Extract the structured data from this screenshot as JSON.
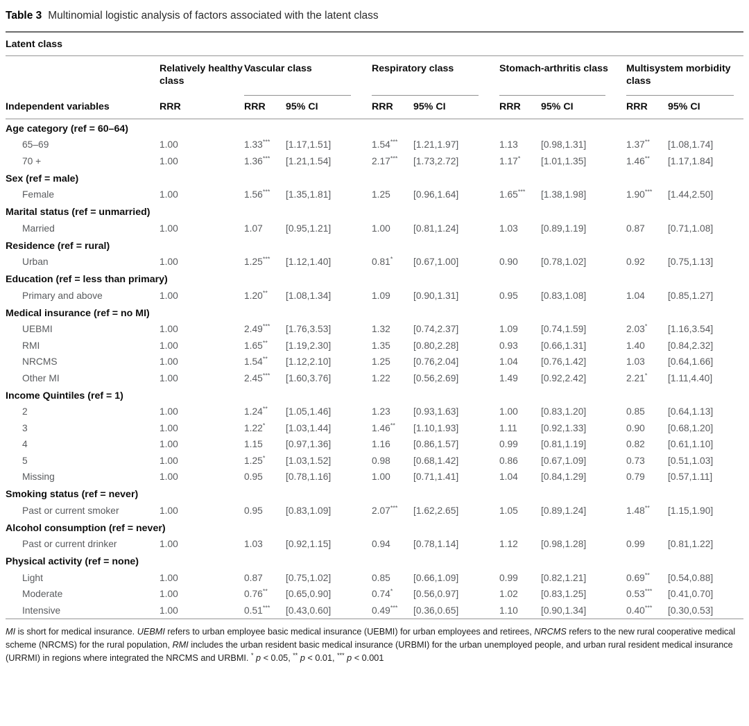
{
  "title": {
    "label": "Table 3",
    "text": "Multinomial logistic analysis of factors associated with the latent class"
  },
  "table": {
    "span_header": "Latent class",
    "row_header": "Independent variables",
    "col_groups": [
      {
        "label": "Relatively healthy class",
        "cols": [
          "RRR"
        ]
      },
      {
        "label": "Vascular class",
        "cols": [
          "RRR",
          "95% CI"
        ]
      },
      {
        "label": "Respiratory class",
        "cols": [
          "RRR",
          "95% CI"
        ]
      },
      {
        "label": "Stomach-arthritis class",
        "cols": [
          "RRR",
          "95% CI"
        ]
      },
      {
        "label": "Multisystem morbidity class",
        "cols": [
          "RRR",
          "95% CI"
        ]
      }
    ],
    "sections": [
      {
        "header": "Age category (ref = 60–64)",
        "rows": [
          {
            "label": "65–69",
            "cells": [
              "1.00",
              "1.33***",
              "[1.17,1.51]",
              "1.54***",
              "[1.21,1.97]",
              "1.13",
              "[0.98,1.31]",
              "1.37**",
              "[1.08,1.74]"
            ]
          },
          {
            "label": "70 +",
            "cells": [
              "1.00",
              "1.36***",
              "[1.21,1.54]",
              "2.17***",
              "[1.73,2.72]",
              "1.17*",
              "[1.01,1.35]",
              "1.46**",
              "[1.17,1.84]"
            ]
          }
        ]
      },
      {
        "header": "Sex (ref = male)",
        "rows": [
          {
            "label": "Female",
            "cells": [
              "1.00",
              "1.56***",
              "[1.35,1.81]",
              "1.25",
              "[0.96,1.64]",
              "1.65***",
              "[1.38,1.98]",
              "1.90***",
              "[1.44,2.50]"
            ]
          }
        ]
      },
      {
        "header": "Marital status (ref = unmarried)",
        "rows": [
          {
            "label": "Married",
            "cells": [
              "1.00",
              "1.07",
              "[0.95,1.21]",
              "1.00",
              "[0.81,1.24]",
              "1.03",
              "[0.89,1.19]",
              "0.87",
              "[0.71,1.08]"
            ]
          }
        ]
      },
      {
        "header": "Residence (ref = rural)",
        "rows": [
          {
            "label": "Urban",
            "cells": [
              "1.00",
              "1.25***",
              "[1.12,1.40]",
              "0.81*",
              "[0.67,1.00]",
              "0.90",
              "[0.78,1.02]",
              "0.92",
              "[0.75,1.13]"
            ]
          }
        ]
      },
      {
        "header": "Education (ref = less than primary)",
        "rows": [
          {
            "label": "Primary and above",
            "cells": [
              "1.00",
              "1.20**",
              "[1.08,1.34]",
              "1.09",
              "[0.90,1.31]",
              "0.95",
              "[0.83,1.08]",
              "1.04",
              "[0.85,1.27]"
            ]
          }
        ]
      },
      {
        "header": "Medical insurance (ref = no MI)",
        "rows": [
          {
            "label": "UEBMI",
            "cells": [
              "1.00",
              "2.49***",
              "[1.76,3.53]",
              "1.32",
              "[0.74,2.37]",
              "1.09",
              "[0.74,1.59]",
              "2.03*",
              "[1.16,3.54]"
            ]
          },
          {
            "label": "RMI",
            "cells": [
              "1.00",
              "1.65**",
              "[1.19,2.30]",
              "1.35",
              "[0.80,2.28]",
              "0.93",
              "[0.66,1.31]",
              "1.40",
              "[0.84,2.32]"
            ]
          },
          {
            "label": "NRCMS",
            "cells": [
              "1.00",
              "1.54**",
              "[1.12,2.10]",
              "1.25",
              "[0.76,2.04]",
              "1.04",
              "[0.76,1.42]",
              "1.03",
              "[0.64,1.66]"
            ]
          },
          {
            "label": "Other MI",
            "cells": [
              "1.00",
              "2.45***",
              "[1.60,3.76]",
              "1.22",
              "[0.56,2.69]",
              "1.49",
              "[0.92,2.42]",
              "2.21*",
              "[1.11,4.40]"
            ]
          }
        ]
      },
      {
        "header": "Income Quintiles (ref = 1)",
        "rows": [
          {
            "label": "2",
            "cells": [
              "1.00",
              "1.24**",
              "[1.05,1.46]",
              "1.23",
              "[0.93,1.63]",
              "1.00",
              "[0.83,1.20]",
              "0.85",
              "[0.64,1.13]"
            ]
          },
          {
            "label": "3",
            "cells": [
              "1.00",
              "1.22*",
              "[1.03,1.44]",
              "1.46**",
              "[1.10,1.93]",
              "1.11",
              "[0.92,1.33]",
              "0.90",
              "[0.68,1.20]"
            ]
          },
          {
            "label": "4",
            "cells": [
              "1.00",
              "1.15",
              "[0.97,1.36]",
              "1.16",
              "[0.86,1.57]",
              "0.99",
              "[0.81,1.19]",
              "0.82",
              "[0.61,1.10]"
            ]
          },
          {
            "label": "5",
            "cells": [
              "1.00",
              "1.25*",
              "[1.03,1.52]",
              "0.98",
              "[0.68,1.42]",
              "0.86",
              "[0.67,1.09]",
              "0.73",
              "[0.51,1.03]"
            ]
          },
          {
            "label": "Missing",
            "cells": [
              "1.00",
              "0.95",
              "[0.78,1.16]",
              "1.00",
              "[0.71,1.41]",
              "1.04",
              "[0.84,1.29]",
              "0.79",
              "[0.57,1.11]"
            ]
          }
        ]
      },
      {
        "header": "Smoking status (ref = never)",
        "rows": [
          {
            "label": "Past or current smoker",
            "cells": [
              "1.00",
              "0.95",
              "[0.83,1.09]",
              "2.07***",
              "[1.62,2.65]",
              "1.05",
              "[0.89,1.24]",
              "1.48**",
              "[1.15,1.90]"
            ]
          }
        ]
      },
      {
        "header": "Alcohol consumption (ref = never)",
        "rows": [
          {
            "label": "Past or current drinker",
            "cells": [
              "1.00",
              "1.03",
              "[0.92,1.15]",
              "0.94",
              "[0.78,1.14]",
              "1.12",
              "[0.98,1.28]",
              "0.99",
              "[0.81,1.22]"
            ]
          }
        ]
      },
      {
        "header": "Physical activity (ref = none)",
        "rows": [
          {
            "label": "Light",
            "cells": [
              "1.00",
              "0.87",
              "[0.75,1.02]",
              "0.85",
              "[0.66,1.09]",
              "0.99",
              "[0.82,1.21]",
              "0.69**",
              "[0.54,0.88]"
            ]
          },
          {
            "label": "Moderate",
            "cells": [
              "1.00",
              "0.76**",
              "[0.65,0.90]",
              "0.74*",
              "[0.56,0.97]",
              "1.02",
              "[0.83,1.25]",
              "0.53***",
              "[0.41,0.70]"
            ]
          },
          {
            "label": "Intensive",
            "cells": [
              "1.00",
              "0.51***",
              "[0.43,0.60]",
              "0.49***",
              "[0.36,0.65]",
              "1.10",
              "[0.90,1.34]",
              "0.40***",
              "[0.30,0.53]"
            ]
          }
        ]
      }
    ]
  },
  "footnote": {
    "segments": [
      {
        "t": "MI",
        "i": true
      },
      {
        "t": " is short for medical insurance. "
      },
      {
        "t": "UEBMI",
        "i": true
      },
      {
        "t": " refers to urban employee basic medical insurance (UEBMI) for urban employees and retirees, "
      },
      {
        "t": "NRCMS",
        "i": true
      },
      {
        "t": " refers to the new rural cooperative medical scheme (NRCMS) for the rural population, "
      },
      {
        "t": "RMI",
        "i": true
      },
      {
        "t": " includes the urban resident basic medical insurance (URBMI) for the urban unemployed people, and urban rural resident medical insurance (URRMI) in regions where integrated the NRCMS and URBMI. "
      },
      {
        "t": "*",
        "s": true
      },
      {
        "t": " "
      },
      {
        "t": "p",
        "i": true
      },
      {
        "t": " < 0.05, "
      },
      {
        "t": "**",
        "s": true
      },
      {
        "t": " "
      },
      {
        "t": "p",
        "i": true
      },
      {
        "t": " < 0.01, "
      },
      {
        "t": "***",
        "s": true
      },
      {
        "t": " "
      },
      {
        "t": "p",
        "i": true
      },
      {
        "t": " < 0.001"
      }
    ]
  }
}
